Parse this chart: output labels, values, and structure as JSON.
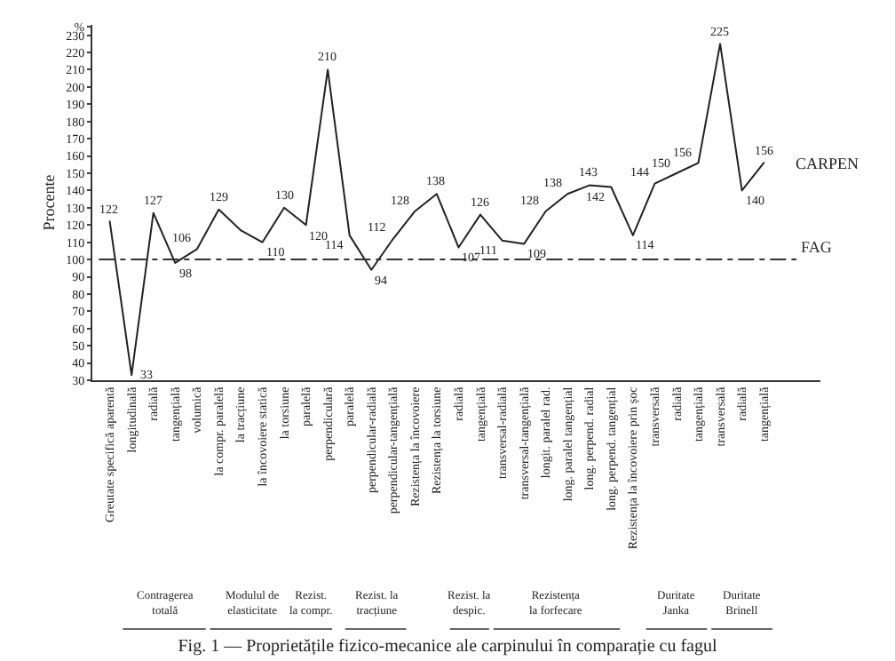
{
  "chart_data": {
    "type": "line",
    "title": "Fig. 1 — Proprietățile fizico-mecanice ale carpinului în comparație cu fagul",
    "ylabel": "Procente",
    "categories": [
      "Greutate specifică aparentă",
      "longitudinală",
      "radială",
      "tangențială",
      "volumică",
      "la compr. paralelă",
      "la tracțiune",
      "la încovoiere statică",
      "la torsiune",
      "paralelă",
      "perpendiculară",
      "paralelă",
      "perpendicular-radială",
      "perpendicular-tangențială",
      "Rezistența la încovoiere",
      "Rezistența la torsiune",
      "radială",
      "tangențială",
      "transversal-radială",
      "transversal-tangențială",
      "longit. paralel rad.",
      "long. paralel tangențial",
      "long. perpend. radial",
      "long. perpend. tangențial",
      "Rezistența la încovoiere prin șoc",
      "transversală",
      "radială",
      "tangențială",
      "transversală",
      "radială",
      "tangențială"
    ],
    "series": [
      {
        "name": "CARPEN",
        "color": "#222222",
        "values": [
          122,
          33,
          127,
          98,
          106,
          129,
          117,
          110,
          130,
          120,
          210,
          114,
          94,
          112,
          128,
          138,
          107,
          126,
          111,
          109,
          128,
          138,
          143,
          142,
          114,
          144,
          150,
          156,
          225,
          140,
          156
        ],
        "value_labels": [
          "122",
          "33",
          "127",
          "98",
          "106",
          "129",
          null,
          "110",
          "130",
          "120",
          "210",
          "114",
          "94",
          "112",
          "128",
          "138",
          "107",
          "126",
          "111",
          "109",
          "128",
          "138",
          "143",
          "142",
          "114",
          "144",
          "150",
          "156",
          "225",
          "140",
          "156"
        ]
      }
    ],
    "ylim": [
      30,
      236
    ],
    "yticks": [
      30,
      40,
      50,
      60,
      70,
      80,
      90,
      100,
      110,
      120,
      130,
      140,
      150,
      160,
      170,
      180,
      190,
      200,
      210,
      220,
      230,
      {
        "value": 235,
        "label": "%"
      }
    ],
    "ref_lines": [
      {
        "axis": "y",
        "value": 100,
        "label": "FAG",
        "color": "#333333",
        "line_style": "dashdot"
      }
    ],
    "annotations": [
      "Contragerea totală",
      "Modulul de elasticitate",
      "Rezist. la compr.",
      "Rezist. la tracțiune",
      "Rezist. la despic.",
      "Rezistența la forfecare",
      "Duritate Janka",
      "Duritate Brinell"
    ],
    "grid": false,
    "marker": "none",
    "line_style": "solid",
    "legend": false
  }
}
